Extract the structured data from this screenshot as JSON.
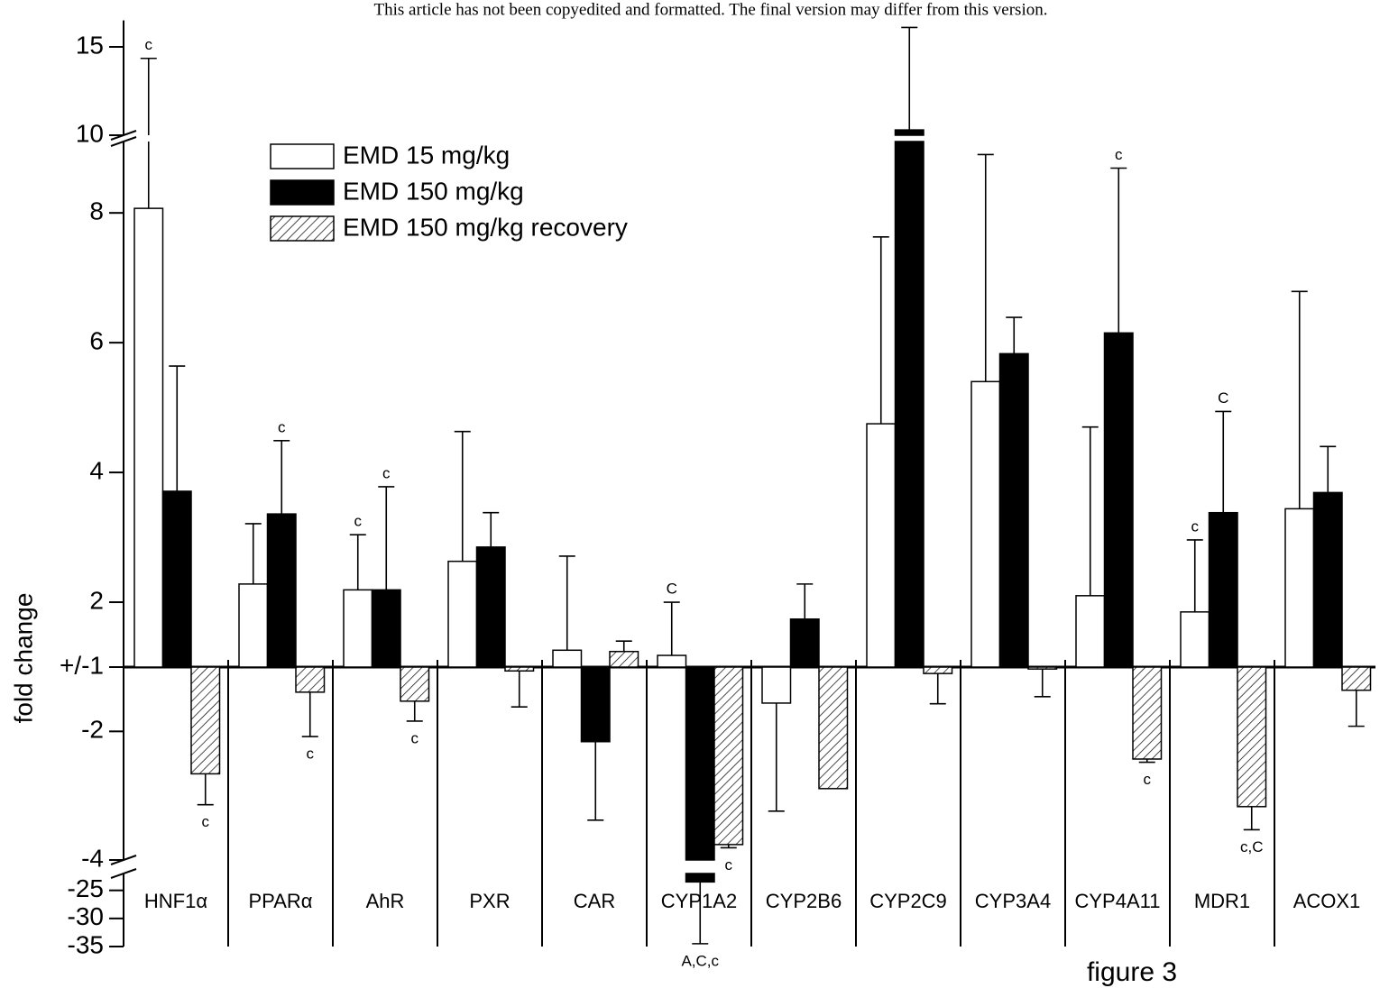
{
  "header": "This article has not been copyedited and formatted. The final version may differ from this version.",
  "footer": "figure 3",
  "chart_data": {
    "type": "bar",
    "ylabel": "fold change",
    "categories": [
      "HNF1α",
      "PPARα",
      "AhR",
      "PXR",
      "CAR",
      "CYP1A2",
      "CYP2B6",
      "CYP2C9",
      "CYP3A4",
      "CYP4A11",
      "MDR1",
      "ACOX1"
    ],
    "series": [
      {
        "name": "EMD 15 mg/kg",
        "color": "#ffffff",
        "values": [
          8.07,
          2.28,
          2.19,
          2.63,
          1.26,
          1.18,
          -1.56,
          4.75,
          5.4,
          2.1,
          1.85,
          3.44
        ],
        "errors": [
          6.28,
          0.93,
          0.85,
          2.0,
          1.45,
          0.82,
          1.68,
          2.88,
          3.5,
          2.6,
          1.11,
          3.35
        ]
      },
      {
        "name": "EMD 150 mg/kg",
        "color": "#000000",
        "values": [
          3.71,
          3.36,
          2.19,
          2.85,
          -2.16,
          -23.5,
          1.74,
          10.3,
          5.83,
          6.15,
          3.38,
          3.69
        ],
        "errors": [
          1.93,
          1.13,
          1.59,
          0.53,
          1.22,
          11,
          0.54,
          5.8,
          0.56,
          2.54,
          1.56,
          0.71
        ]
      },
      {
        "name": "EMD 150 mg/kg recovery",
        "color": "#000000",
        "pattern": "hatch",
        "values": [
          -2.66,
          -1.39,
          -1.53,
          -1.06,
          1.24,
          -3.76,
          -2.89,
          -1.1,
          -1.03,
          -2.43,
          -3.17,
          -1.36
        ],
        "errors": [
          0.48,
          0.69,
          0.31,
          0.56,
          0.16,
          0.05,
          null,
          0.47,
          0.43,
          0.05,
          0.36,
          0.56
        ]
      }
    ],
    "y_segments": [
      {
        "ylim": [
          -35,
          -22
        ],
        "yticks": [
          -35,
          -30,
          -25
        ]
      },
      {
        "ylim": [
          -4,
          -1
        ],
        "yticks": [
          -4,
          -2
        ]
      },
      {
        "ylim": [
          1,
          9.1
        ],
        "yticks": [
          {
            "value": 1,
            "label": "+/-1"
          },
          2,
          4,
          6,
          8
        ]
      },
      {
        "ylim": [
          10,
          16.5
        ],
        "yticks": [
          10,
          15
        ]
      }
    ],
    "legend": "top-left",
    "annotations": [
      {
        "text": "c",
        "category": 0,
        "series": 0
      },
      {
        "text": "c",
        "category": 0,
        "series": 2
      },
      {
        "text": "c",
        "category": 1,
        "series": 1
      },
      {
        "text": "c",
        "category": 1,
        "series": 2
      },
      {
        "text": "c",
        "category": 2,
        "series": 0
      },
      {
        "text": "c",
        "category": 2,
        "series": 1
      },
      {
        "text": "c",
        "category": 2,
        "series": 2
      },
      {
        "text": "C",
        "category": 5,
        "series": 0
      },
      {
        "text": "A,C,c",
        "category": 5,
        "series": 1
      },
      {
        "text": "c",
        "category": 5,
        "series": 2
      },
      {
        "text": "c",
        "category": 9,
        "series": 1
      },
      {
        "text": "c",
        "category": 9,
        "series": 2
      },
      {
        "text": "c",
        "category": 10,
        "series": 0
      },
      {
        "text": "C",
        "category": 10,
        "series": 1
      },
      {
        "text": "c,C",
        "category": 10,
        "series": 2
      }
    ]
  }
}
